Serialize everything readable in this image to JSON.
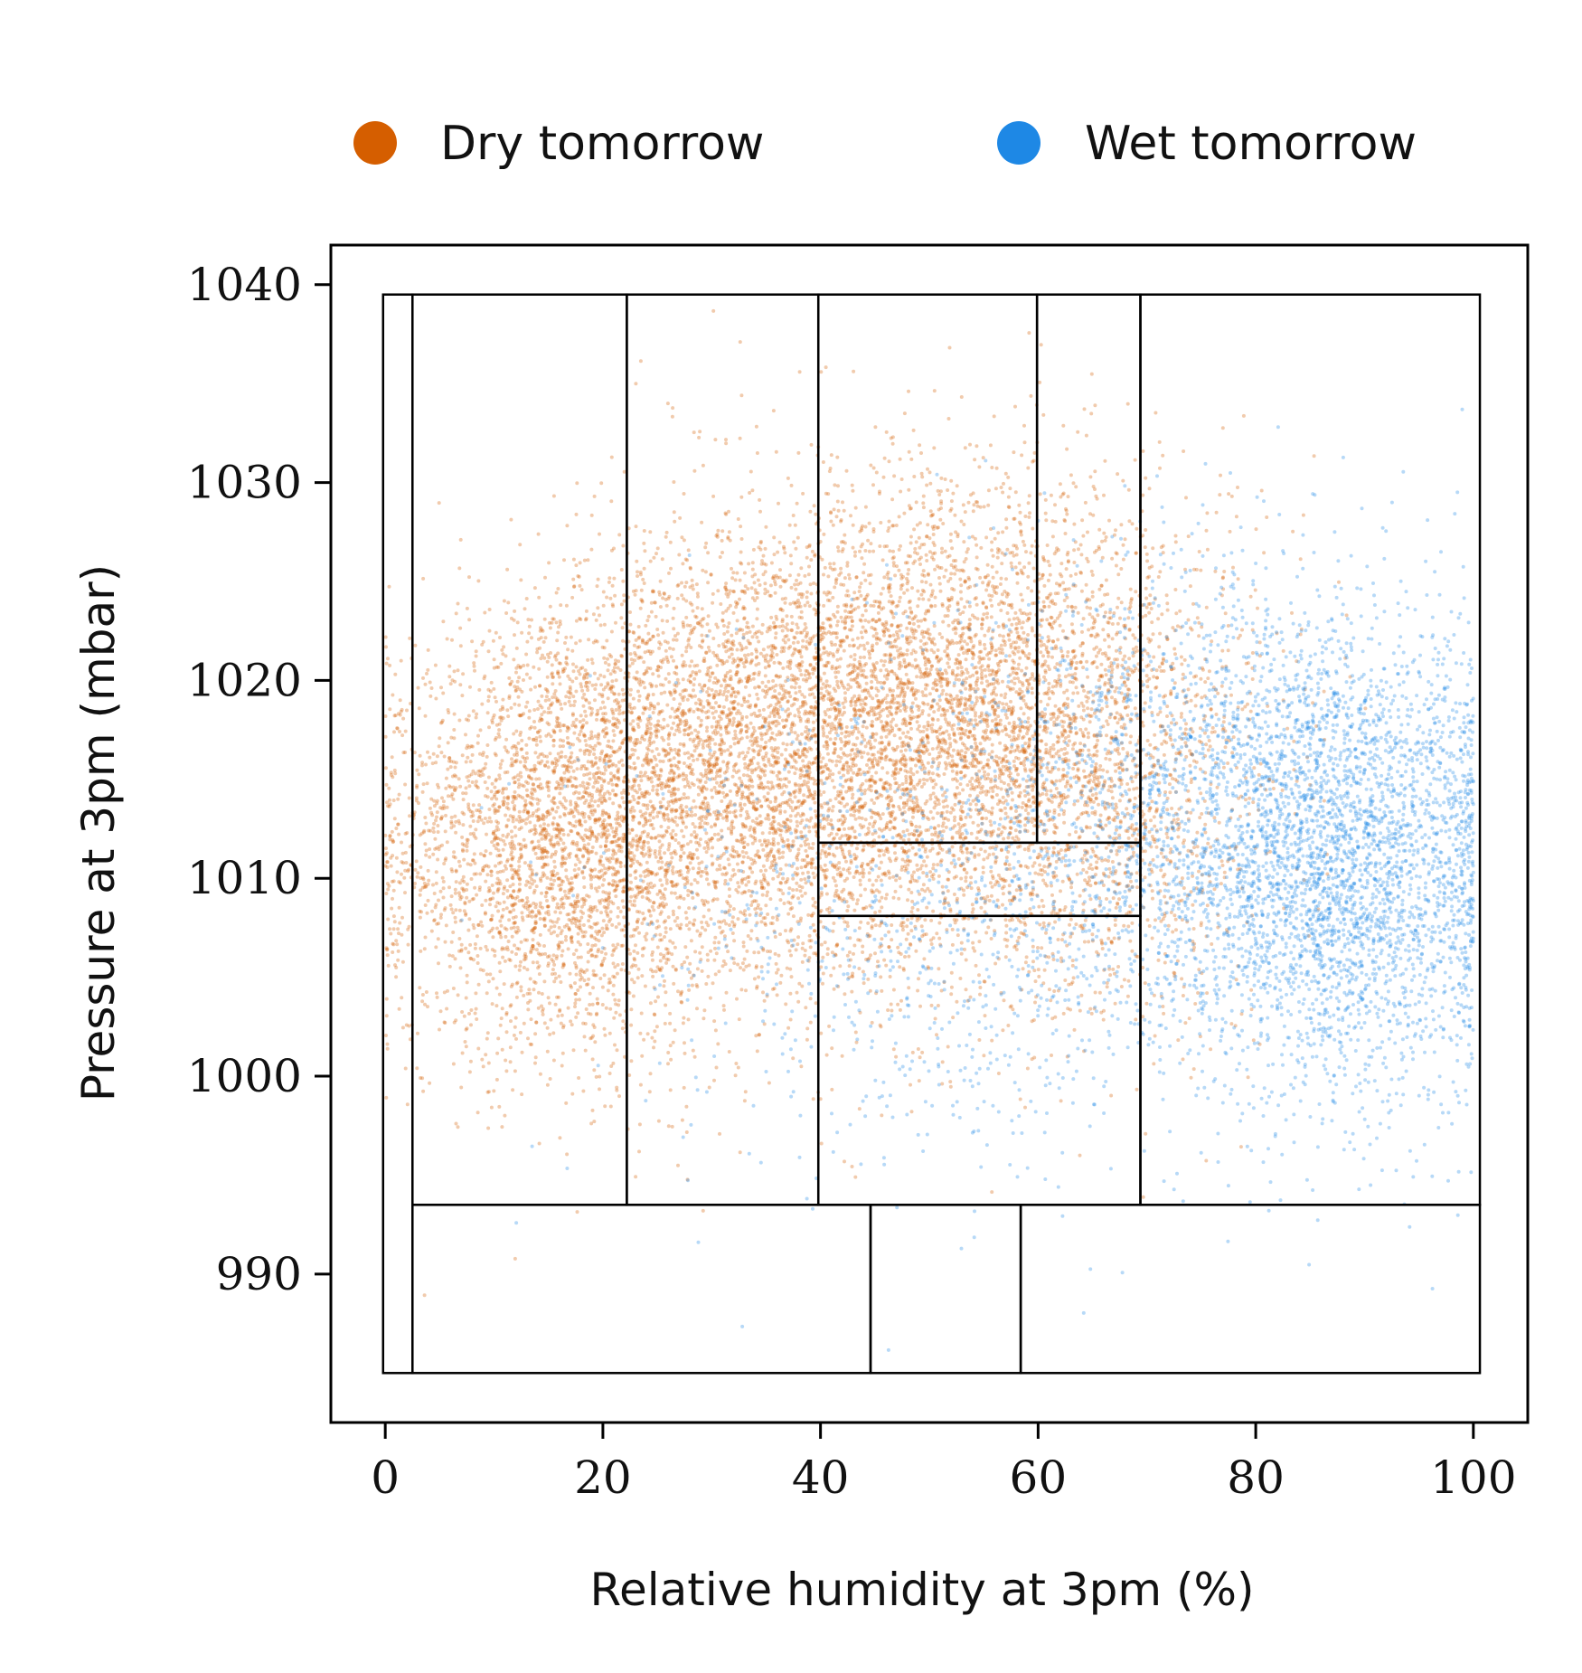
{
  "chart_data": {
    "type": "scatter",
    "title": "",
    "xlabel": "Relative humidity at 3pm (%)",
    "ylabel": "Pressure at 3pm (mbar)",
    "xlim": [
      -5,
      105
    ],
    "ylim": [
      982.5,
      1042
    ],
    "x_ticks": [
      0,
      20,
      40,
      60,
      80,
      100
    ],
    "y_ticks": [
      990,
      1000,
      1010,
      1020,
      1030,
      1040
    ],
    "x_tick_labels": [
      "0",
      "20",
      "40",
      "60",
      "80",
      "100"
    ],
    "y_tick_labels": [
      "990",
      "1000",
      "1010",
      "1020",
      "1030",
      "1040"
    ],
    "legend_position": "top",
    "grid": false,
    "series": [
      {
        "name": "Dry tomorrow",
        "color": "#D55E00",
        "clusters": [
          {
            "x_mean": 16,
            "x_sd": 8,
            "y_mean": 1012,
            "y_sd": 5.5,
            "count": 3200
          },
          {
            "x_mean": 34,
            "x_sd": 9,
            "y_mean": 1016,
            "y_sd": 6,
            "count": 3600
          },
          {
            "x_mean": 52,
            "x_sd": 9,
            "y_mean": 1018,
            "y_sd": 6,
            "count": 3400
          },
          {
            "x_mean": 66,
            "x_sd": 8,
            "y_mean": 1016,
            "y_sd": 6.5,
            "count": 1600
          }
        ]
      },
      {
        "name": "Wet tomorrow",
        "color": "#1E88E5",
        "clusters": [
          {
            "x_mean": 88,
            "x_sd": 8,
            "y_mean": 1011,
            "y_sd": 6,
            "count": 3400
          },
          {
            "x_mean": 72,
            "x_sd": 10,
            "y_mean": 1013,
            "y_sd": 6.5,
            "count": 1300
          },
          {
            "x_mean": 50,
            "x_sd": 14,
            "y_mean": 1008,
            "y_sd": 7,
            "count": 800
          }
        ]
      }
    ],
    "partition_rectangles": [
      {
        "x0": -0.2,
        "x1": 2.5,
        "y0": 985.0,
        "y1": 1039.5
      },
      {
        "x0": 2.5,
        "x1": 22.2,
        "y0": 993.5,
        "y1": 1039.5
      },
      {
        "x0": 22.2,
        "x1": 39.8,
        "y0": 993.5,
        "y1": 1039.5
      },
      {
        "x0": 39.8,
        "x1": 59.9,
        "y0": 1011.8,
        "y1": 1039.5
      },
      {
        "x0": 59.9,
        "x1": 69.4,
        "y0": 1011.8,
        "y1": 1039.5
      },
      {
        "x0": 39.8,
        "x1": 69.4,
        "y0": 1008.1,
        "y1": 1011.8
      },
      {
        "x0": 39.8,
        "x1": 69.4,
        "y0": 993.5,
        "y1": 1008.1
      },
      {
        "x0": 69.4,
        "x1": 100.6,
        "y0": 993.5,
        "y1": 1039.5
      },
      {
        "x0": 2.5,
        "x1": 44.6,
        "y0": 985.0,
        "y1": 993.5
      },
      {
        "x0": 44.6,
        "x1": 58.4,
        "y0": 985.0,
        "y1": 993.5
      },
      {
        "x0": 58.4,
        "x1": 100.6,
        "y0": 985.0,
        "y1": 993.5
      }
    ]
  }
}
